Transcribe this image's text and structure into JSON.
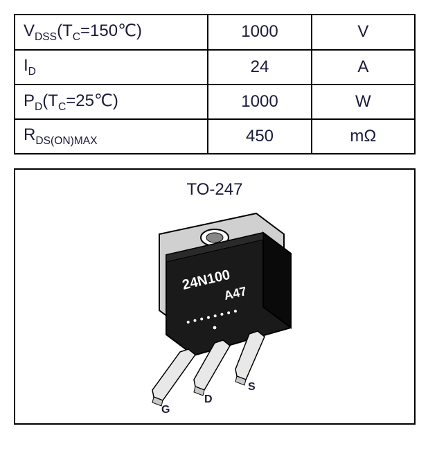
{
  "table": {
    "rows": [
      {
        "param_html": "V<span class='sub'>DSS</span>(T<span class='sub'>C</span>=150℃)",
        "value": "1000",
        "unit": "V"
      },
      {
        "param_html": "I<span class='sub'>D</span>",
        "value": "24",
        "unit": "A"
      },
      {
        "param_html": "P<span class='sub'>D</span>(T<span class='sub'>C</span>=25℃)",
        "value": "1000",
        "unit": "W"
      },
      {
        "param_html": "R<span class='sub'>DS(ON)MAX</span>",
        "value": "450",
        "unit": "mΩ"
      }
    ],
    "border_color": "#000000",
    "text_color": "#1a1a3a",
    "font_size": 24
  },
  "package": {
    "title": "TO-247",
    "marking_line1": "24N100",
    "marking_line2": "A47",
    "pins": [
      "G",
      "D",
      "S"
    ],
    "body_color": "#1a1a1a",
    "pin_color": "#e8e8e8",
    "outline_color": "#000000"
  }
}
